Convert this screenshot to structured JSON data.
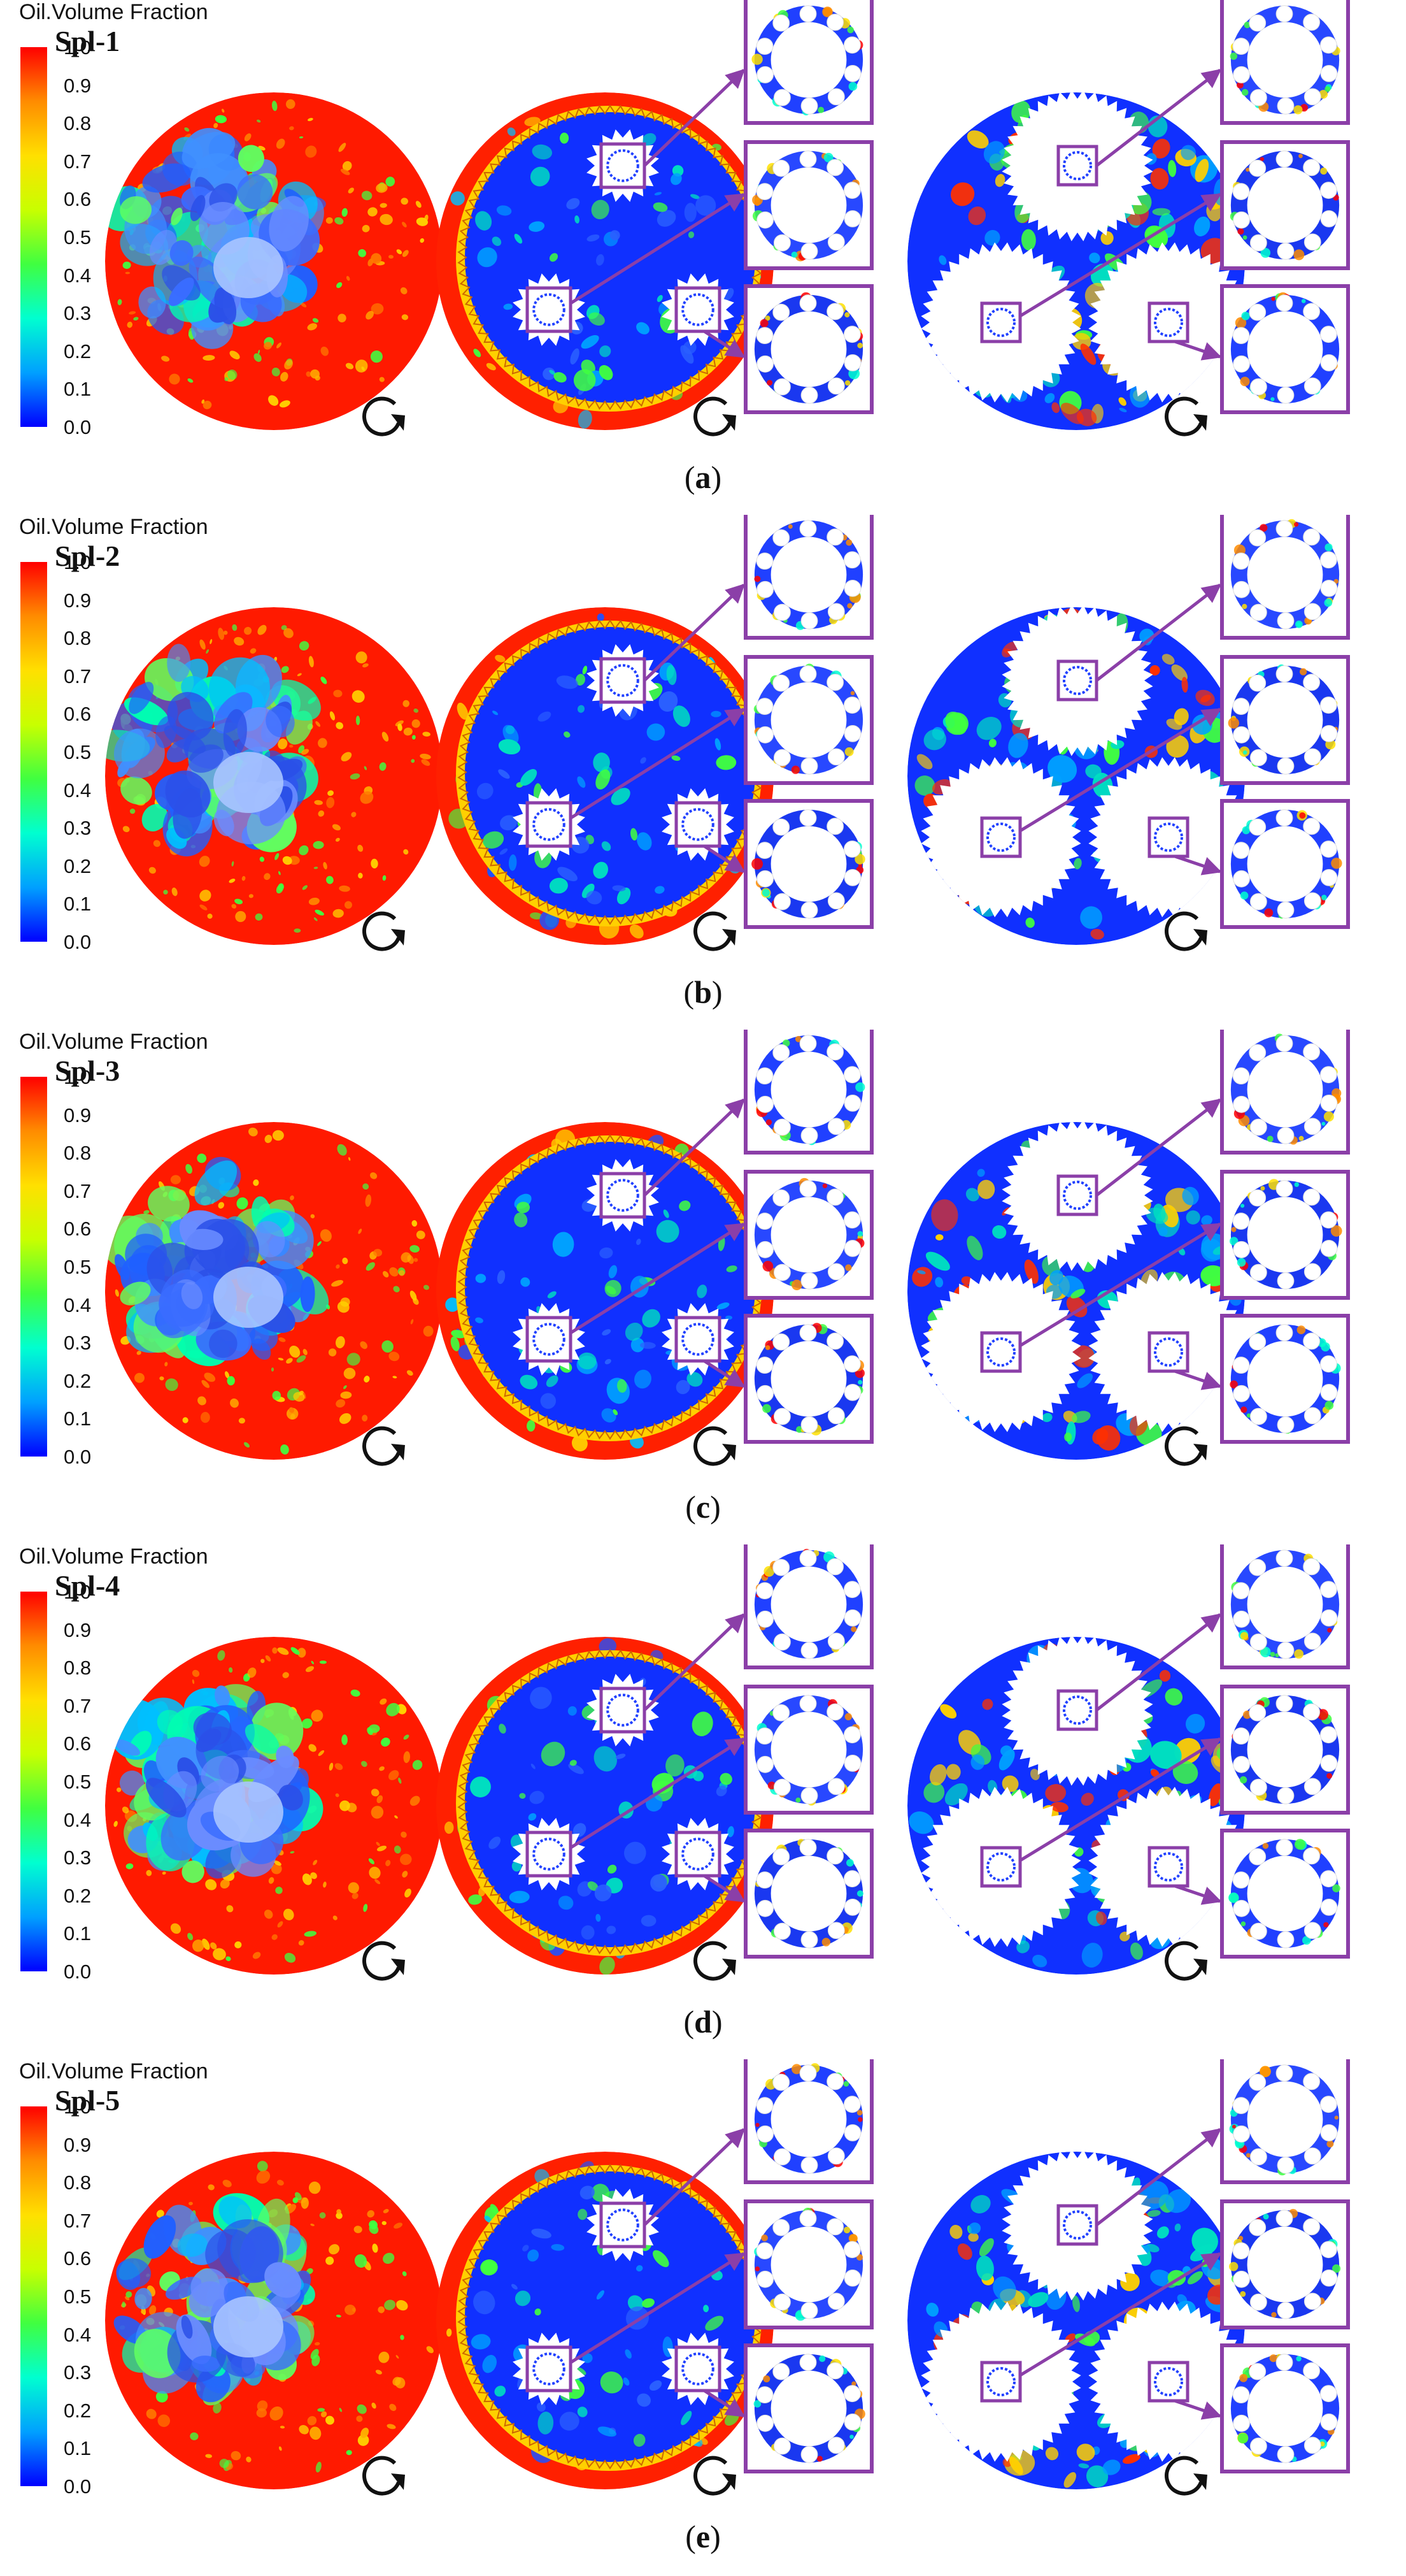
{
  "colorbar": {
    "title": "Oil.Volume Fraction",
    "ticks": [
      "1.0",
      "0.9",
      "0.8",
      "0.7",
      "0.6",
      "0.5",
      "0.4",
      "0.3",
      "0.2",
      "0.1",
      "0.0"
    ],
    "min": 0.0,
    "max": 1.0,
    "scale": [
      "#0000ff",
      "#00a0ff",
      "#00ffd0",
      "#40ff40",
      "#c8ff00",
      "#ffe000",
      "#ff8c00",
      "#ff0000"
    ]
  },
  "accent_color": "#8b3fa8",
  "rotation_icon": "clockwise-arrow-icon",
  "panels": [
    {
      "label": "Spl-1",
      "caption_open": "(",
      "caption_letter": "a",
      "caption_close": ")"
    },
    {
      "label": "Spl-2",
      "caption_open": "(",
      "caption_letter": "b",
      "caption_close": ")"
    },
    {
      "label": "Spl-3",
      "caption_open": "(",
      "caption_letter": "c",
      "caption_close": ")"
    },
    {
      "label": "Spl-4",
      "caption_open": "(",
      "caption_letter": "d",
      "caption_close": ")"
    },
    {
      "label": "Spl-5",
      "caption_open": "(",
      "caption_letter": "e",
      "caption_close": ")"
    }
  ]
}
